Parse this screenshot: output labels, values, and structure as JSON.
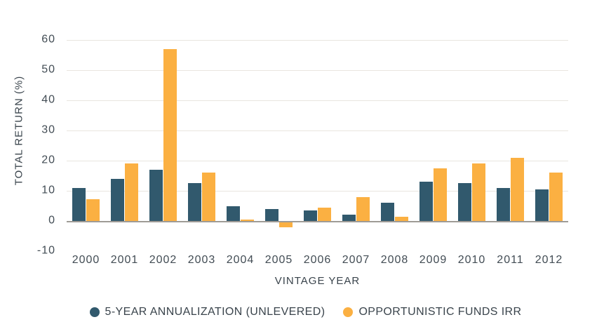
{
  "chart_data": {
    "type": "bar",
    "xlabel": "VINTAGE YEAR",
    "ylabel": "TOTAL RETURN (%)",
    "categories": [
      "2000",
      "2001",
      "2002",
      "2003",
      "2004",
      "2005",
      "2006",
      "2007",
      "2008",
      "2009",
      "2010",
      "2011",
      "2012"
    ],
    "series": [
      {
        "name": "5-YEAR ANNUALIZATION (UNLEVERED)",
        "key": "unlevered",
        "color": "#31596D",
        "values": [
          11,
          14,
          17,
          12.5,
          5,
          4,
          3.5,
          2.2,
          6,
          13,
          12.5,
          11,
          10.5
        ]
      },
      {
        "name": "OPPORTUNISTIC FUNDS IRR",
        "key": "irr",
        "color": "#FBB042",
        "values": [
          7.2,
          19,
          57,
          16,
          0.5,
          -2,
          4.4,
          8,
          1.3,
          17.5,
          19,
          21,
          16
        ]
      }
    ],
    "ylim": [
      -10,
      60
    ],
    "yticks": [
      60,
      50,
      40,
      30,
      20,
      10,
      0,
      -10
    ],
    "grid": true,
    "legend_position": "bottom"
  },
  "colors": {
    "background": "#FFFFFF",
    "text": "#3A444C",
    "tick_text": "#424C54",
    "gridline": "#E9E5DF",
    "zero_line": "#9E9B96"
  }
}
